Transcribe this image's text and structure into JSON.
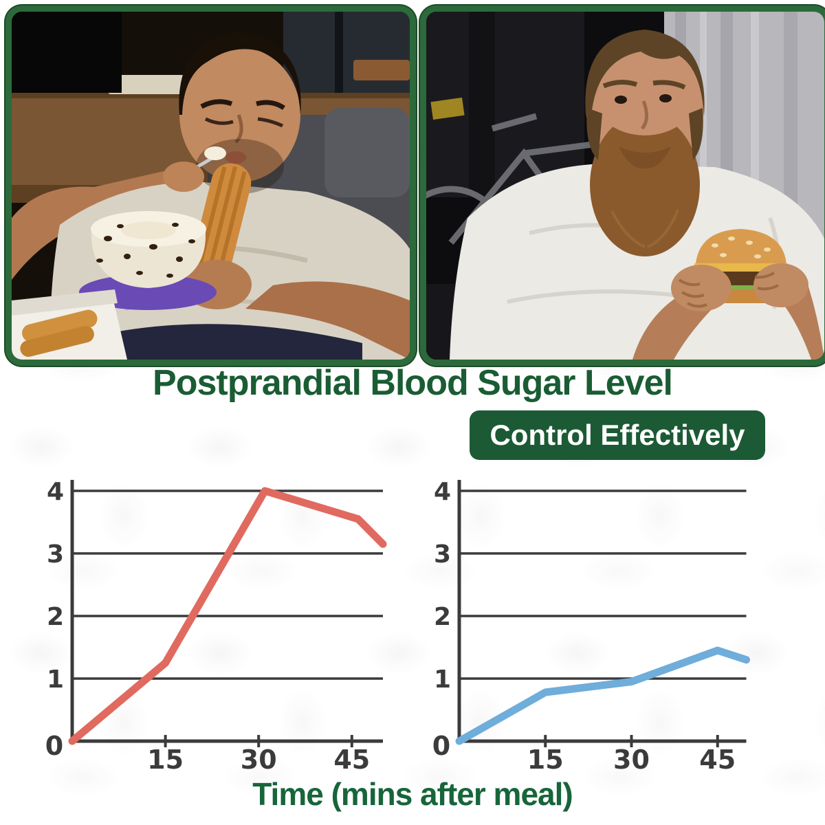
{
  "heading": {
    "title": "Postprandial Blood Sugar Level"
  },
  "badge": {
    "label": "Control Effectively"
  },
  "xaxis_label": "Time (mins after meal)",
  "photos": {
    "left": {
      "label": "man slouched on sofa eating cream cake and churros, eyes closed"
    },
    "right": {
      "label": "bearded man on sofa eating a sesame bun burger"
    }
  },
  "chart_data": [
    {
      "type": "line",
      "name": "uncontrolled-blood-sugar",
      "line_color": "#e06a5f",
      "x": [
        0,
        15,
        31,
        46,
        50
      ],
      "y": [
        0,
        1.25,
        4.0,
        3.55,
        3.15
      ],
      "xticks": [
        15,
        30,
        45
      ],
      "yticks": [
        1,
        2,
        3,
        4
      ],
      "origin_label": "0",
      "xlim": [
        0,
        50
      ],
      "ylim": [
        0,
        4.3
      ],
      "grid": true,
      "legend": "none",
      "xlabel": "Time (mins after meal)",
      "ylabel": ""
    },
    {
      "type": "line",
      "name": "controlled-blood-sugar",
      "line_color": "#6fadda",
      "x": [
        0,
        15,
        30,
        45,
        50
      ],
      "y": [
        0,
        0.78,
        0.95,
        1.45,
        1.3
      ],
      "xticks": [
        15,
        30,
        45
      ],
      "yticks": [
        1,
        2,
        3,
        4
      ],
      "origin_label": "0",
      "xlim": [
        0,
        50
      ],
      "ylim": [
        0,
        4.3
      ],
      "grid": true,
      "legend": "none",
      "xlabel": "Time (mins after meal)",
      "ylabel": ""
    }
  ],
  "colors": {
    "frame_green": "#2c6a3b",
    "badge_green": "#1b5a34",
    "title_green": "#1a5c33",
    "label_green": "#17653a",
    "axis_gray": "#3b3b3b",
    "spike_red": "#e06a5f",
    "control_blue": "#6fadda"
  }
}
